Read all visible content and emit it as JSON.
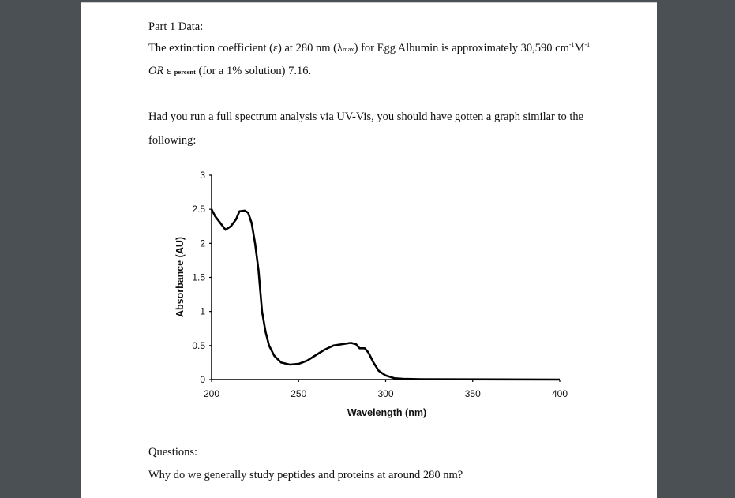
{
  "document": {
    "heading": "Part 1 Data:",
    "line1_pre": "The extinction coefficient (ε) at 280 nm (λ",
    "line1_sub": "max",
    "line1_post": ") for Egg Albumin is approximately 30,590 cm",
    "line1_sup1": "-1",
    "line1_unit": "M",
    "line1_sup2": "-1",
    "line2_or": "OR",
    "line2_eps": "ε",
    "line2_sub": "percent",
    "line2_post": "(for a 1% solution) 7.16.",
    "para2_line1": "Had you run a full spectrum analysis via UV-Vis, you should have gotten a graph similar to the",
    "para2_line2": "following:",
    "questions_heading": "Questions:",
    "question1": "Why do we generally study peptides and proteins at around 280 nm?"
  },
  "chart_data": {
    "type": "line",
    "title": "",
    "xlabel": "Wavelength (nm)",
    "ylabel": "Absorbance (AU)",
    "xlim": [
      200,
      400
    ],
    "ylim": [
      0,
      3
    ],
    "xticks": [
      "200",
      "250",
      "300",
      "350",
      "400"
    ],
    "yticks": [
      "0",
      "0.5",
      "1",
      "1.5",
      "2",
      "2.5",
      "3"
    ],
    "grid": false,
    "line_color": "#000000",
    "series": [
      {
        "x": [
          200,
          202,
          205,
          208,
          211,
          214,
          216,
          219,
          221,
          223,
          225,
          227,
          229,
          231,
          233,
          236,
          240,
          245,
          250,
          255,
          260,
          265,
          270,
          275,
          280,
          283,
          285,
          288,
          290,
          293,
          296,
          300,
          305,
          310,
          320,
          400
        ],
        "y": [
          2.5,
          2.4,
          2.3,
          2.2,
          2.25,
          2.35,
          2.47,
          2.48,
          2.45,
          2.3,
          2.0,
          1.6,
          1.0,
          0.7,
          0.5,
          0.35,
          0.25,
          0.22,
          0.23,
          0.28,
          0.36,
          0.44,
          0.5,
          0.52,
          0.54,
          0.52,
          0.46,
          0.46,
          0.4,
          0.25,
          0.13,
          0.06,
          0.02,
          0.01,
          0.005,
          0
        ]
      }
    ]
  }
}
